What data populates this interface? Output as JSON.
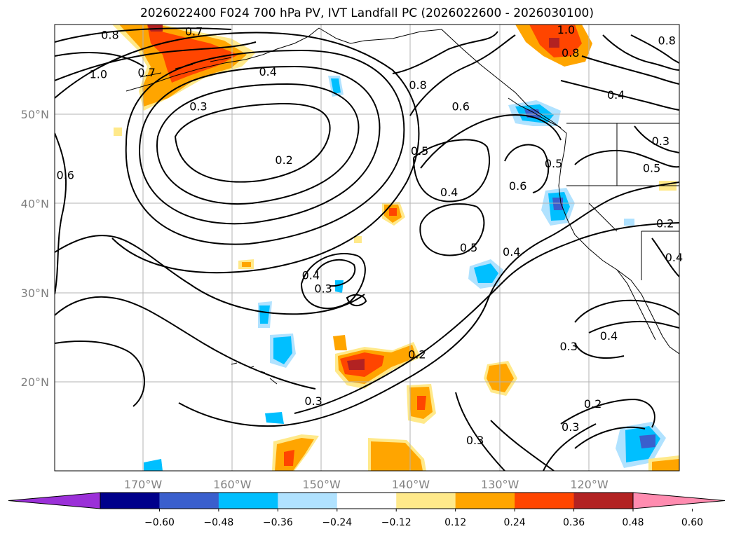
{
  "title": "2026022400 F024 700 hPa PV, IVT Landfall PC (2026022600 - 2026030100)",
  "map": {
    "type": "contour-map",
    "variables": [
      "700 hPa PV",
      "IVT Landfall PC"
    ],
    "lon_range": [
      -180,
      -110
    ],
    "lat_range": [
      10,
      60
    ],
    "lat_labels": [
      {
        "lat": 50,
        "text": "50°N"
      },
      {
        "lat": 40,
        "text": "40°N"
      },
      {
        "lat": 30,
        "text": "30°N"
      },
      {
        "lat": 20,
        "text": "20°N"
      }
    ],
    "lon_labels": [
      {
        "lon": -170,
        "text": "170°W"
      },
      {
        "lon": -160,
        "text": "160°W"
      },
      {
        "lon": -150,
        "text": "150°W"
      },
      {
        "lon": -140,
        "text": "140°W"
      },
      {
        "lon": -130,
        "text": "130°W"
      },
      {
        "lon": -120,
        "text": "120°W"
      }
    ],
    "contour_labels": [
      {
        "text": "0.8",
        "lon": -173.7,
        "lat": 58.9
      },
      {
        "text": "0.7",
        "lon": -164.3,
        "lat": 59.3
      },
      {
        "text": "1.0",
        "lon": -175.0,
        "lat": 54.5
      },
      {
        "text": "0.7",
        "lon": -169.6,
        "lat": 54.7
      },
      {
        "text": "0.4",
        "lon": -156.0,
        "lat": 54.8
      },
      {
        "text": "0.3",
        "lon": -163.8,
        "lat": 50.9
      },
      {
        "text": "0.8",
        "lon": -139.2,
        "lat": 53.3
      },
      {
        "text": "0.6",
        "lon": -134.4,
        "lat": 50.9
      },
      {
        "text": "1.0",
        "lon": -122.6,
        "lat": 59.5
      },
      {
        "text": "0.8",
        "lon": -122.1,
        "lat": 56.9
      },
      {
        "text": "0.8",
        "lon": -111.3,
        "lat": 58.3
      },
      {
        "text": "0.4",
        "lon": -117.0,
        "lat": 52.2
      },
      {
        "text": "0.2",
        "lon": -154.2,
        "lat": 44.9
      },
      {
        "text": "0.5",
        "lon": -139.0,
        "lat": 45.9
      },
      {
        "text": "0.6",
        "lon": -178.7,
        "lat": 43.2
      },
      {
        "text": "0.4",
        "lon": -135.7,
        "lat": 41.3
      },
      {
        "text": "0.6",
        "lon": -128.0,
        "lat": 42.0
      },
      {
        "text": "0.5",
        "lon": -124.0,
        "lat": 44.5
      },
      {
        "text": "0.3",
        "lon": -112.0,
        "lat": 47.0
      },
      {
        "text": "0.5",
        "lon": -113.0,
        "lat": 44.0
      },
      {
        "text": "0.5",
        "lon": -133.5,
        "lat": 35.1
      },
      {
        "text": "0.4",
        "lon": -128.7,
        "lat": 34.6
      },
      {
        "text": "0.2",
        "lon": -111.5,
        "lat": 37.8
      },
      {
        "text": "0.4",
        "lon": -110.5,
        "lat": 34.0
      },
      {
        "text": "0.4",
        "lon": -151.2,
        "lat": 32.0
      },
      {
        "text": "0.3",
        "lon": -149.8,
        "lat": 30.5
      },
      {
        "text": "0.4",
        "lon": -117.8,
        "lat": 25.2
      },
      {
        "text": "0.3",
        "lon": -122.3,
        "lat": 24.0
      },
      {
        "text": "0.2",
        "lon": -139.3,
        "lat": 23.1
      },
      {
        "text": "0.3",
        "lon": -150.9,
        "lat": 17.9
      },
      {
        "text": "0.2",
        "lon": -119.6,
        "lat": 17.6
      },
      {
        "text": "0.3",
        "lon": -122.1,
        "lat": 15.0
      },
      {
        "text": "0.3",
        "lon": -132.8,
        "lat": 13.5
      }
    ]
  },
  "colorbar": {
    "ticks": [
      "−0.60",
      "−0.48",
      "−0.36",
      "−0.24",
      "−0.12",
      "0.12",
      "0.24",
      "0.36",
      "0.48",
      "0.60"
    ],
    "colors": [
      "#9b30d8",
      "#00008b",
      "#3a5fcd",
      "#00bfff",
      "#b0e2ff",
      "#ffffff",
      "#ffe98a",
      "#ffa500",
      "#ff4500",
      "#b22222",
      "#ff8cb0"
    ]
  }
}
